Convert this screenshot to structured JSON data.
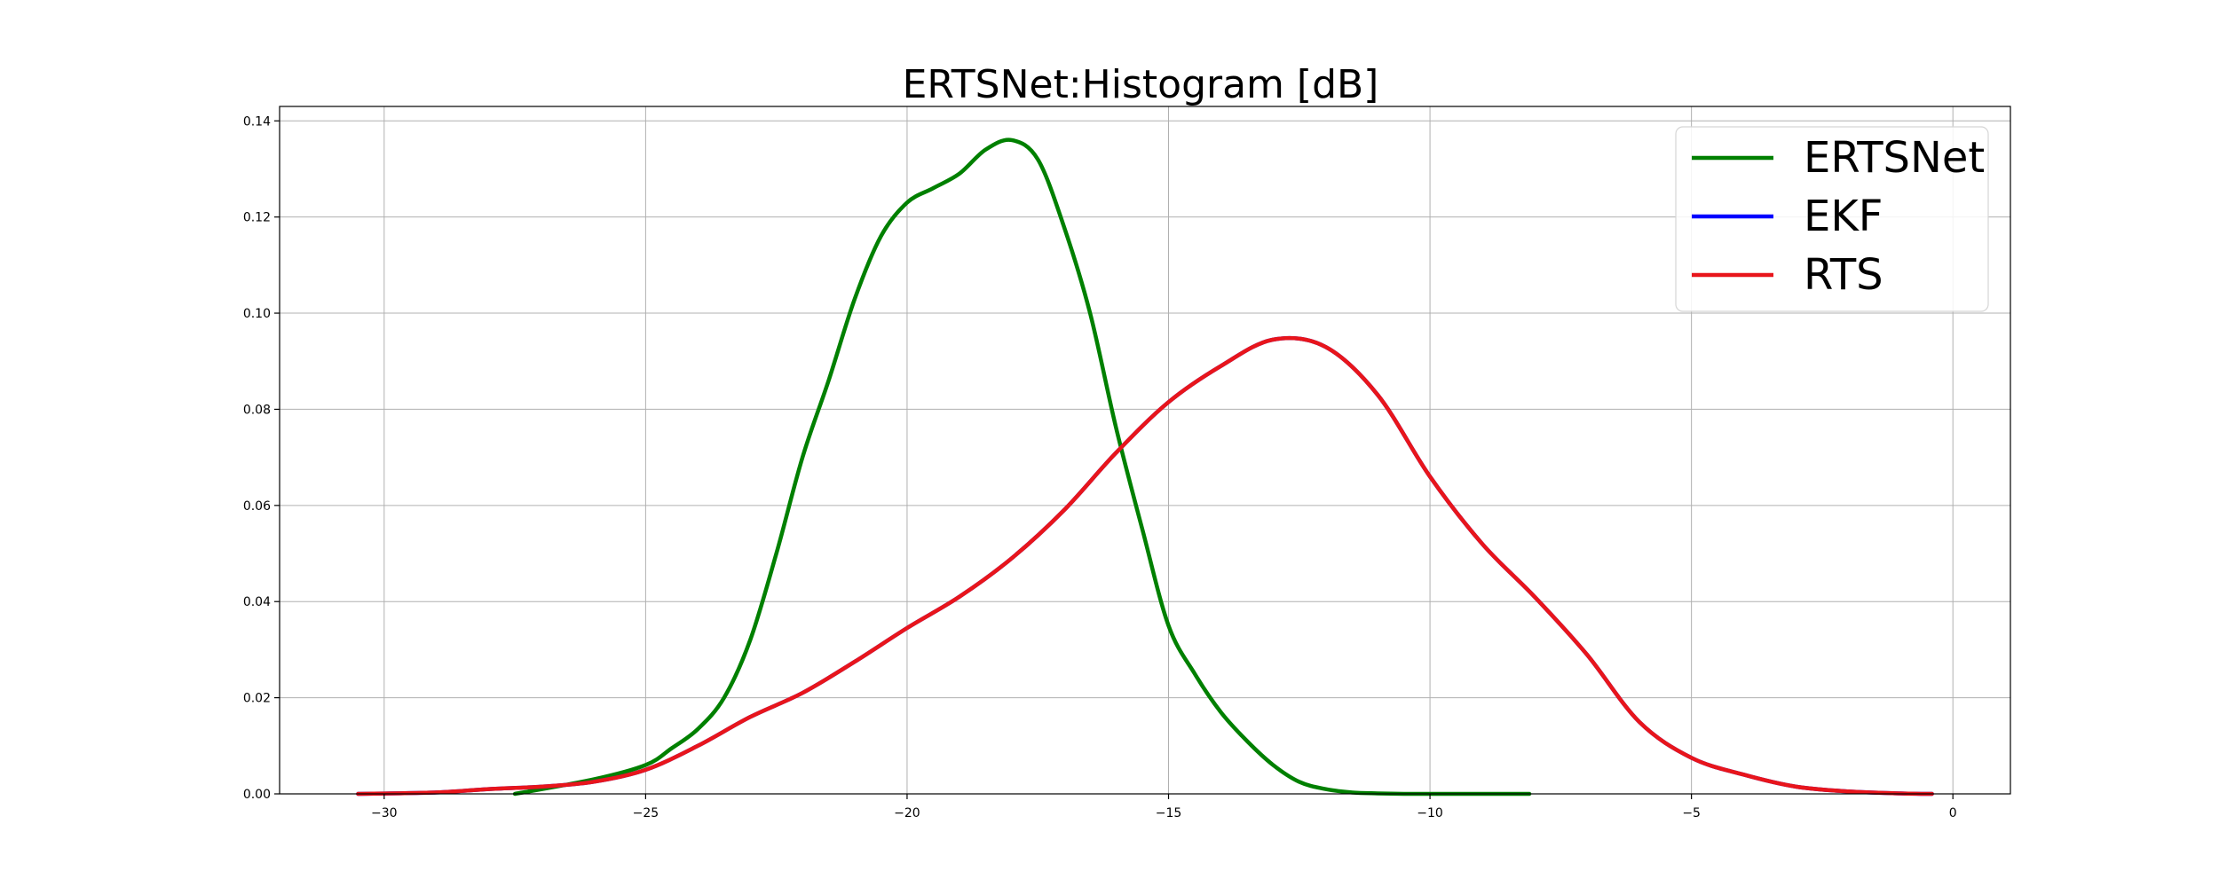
{
  "chart_data": {
    "type": "line",
    "title": "ERTSNet:Histogram [dB]",
    "xlabel": "",
    "ylabel": "",
    "xlim": [
      -32,
      1.1
    ],
    "ylim": [
      0,
      0.143
    ],
    "grid": true,
    "legend_position": "top-right",
    "x_ticks": [
      -30,
      -25,
      -20,
      -15,
      -10,
      -5,
      0
    ],
    "x_tick_labels": [
      "−30",
      "−25",
      "−20",
      "−15",
      "−10",
      "−5",
      "0"
    ],
    "y_ticks": [
      0,
      0.02,
      0.04,
      0.06,
      0.08,
      0.1,
      0.12,
      0.14
    ],
    "y_tick_labels": [
      "0.00",
      "0.02",
      "0.04",
      "0.06",
      "0.08",
      "0.10",
      "0.12",
      "0.14"
    ],
    "series": [
      {
        "name": "ERTSNet",
        "color": "#008000",
        "x": [
          -27.5,
          -26,
          -25,
          -24.5,
          -24,
          -23.5,
          -23,
          -22.5,
          -22,
          -21.5,
          -21,
          -20.5,
          -20,
          -19.5,
          -19,
          -18.5,
          -18,
          -17.5,
          -17,
          -16.5,
          -16,
          -15.5,
          -15,
          -14.5,
          -14,
          -13.5,
          -13,
          -12.5,
          -12,
          -11.5,
          -11,
          -10.5,
          -10,
          -9.5,
          -9,
          -8.5,
          -8.1
        ],
        "y": [
          0.0,
          0.003,
          0.006,
          0.0095,
          0.0135,
          0.02,
          0.032,
          0.05,
          0.07,
          0.086,
          0.103,
          0.116,
          0.123,
          0.126,
          0.129,
          0.134,
          0.136,
          0.132,
          0.118,
          0.1,
          0.076,
          0.055,
          0.035,
          0.025,
          0.017,
          0.011,
          0.006,
          0.0025,
          0.001,
          0.0003,
          0.0001,
          0.0,
          0.0,
          0.0,
          0.0,
          0.0,
          0.0
        ]
      },
      {
        "name": "EKF",
        "color": "#0000ff",
        "x": [
          -30.5,
          -29,
          -28,
          -27,
          -26,
          -25,
          -24,
          -23,
          -22,
          -21,
          -20,
          -19,
          -18,
          -17,
          -16,
          -15,
          -14,
          -13,
          -12,
          -11,
          -10,
          -9,
          -8,
          -7,
          -6,
          -5,
          -4,
          -3,
          -2,
          -1,
          -0.4
        ],
        "y": [
          0.0,
          0.0003,
          0.001,
          0.0015,
          0.0025,
          0.005,
          0.01,
          0.016,
          0.021,
          0.0275,
          0.0345,
          0.041,
          0.049,
          0.059,
          0.071,
          0.0815,
          0.089,
          0.0945,
          0.093,
          0.083,
          0.066,
          0.052,
          0.041,
          0.029,
          0.015,
          0.0075,
          0.004,
          0.0015,
          0.0005,
          0.0001,
          0.0
        ]
      },
      {
        "name": "RTS",
        "color": "#e8151b",
        "x": [
          -30.5,
          -29,
          -28,
          -27,
          -26,
          -25,
          -24,
          -23,
          -22,
          -21,
          -20,
          -19,
          -18,
          -17,
          -16,
          -15,
          -14,
          -13,
          -12,
          -11,
          -10,
          -9,
          -8,
          -7,
          -6,
          -5,
          -4,
          -3,
          -2,
          -1,
          -0.4
        ],
        "y": [
          0.0,
          0.0003,
          0.001,
          0.0015,
          0.0025,
          0.005,
          0.01,
          0.016,
          0.021,
          0.0275,
          0.0345,
          0.041,
          0.049,
          0.059,
          0.071,
          0.0815,
          0.089,
          0.0945,
          0.093,
          0.083,
          0.066,
          0.052,
          0.041,
          0.029,
          0.015,
          0.0075,
          0.004,
          0.0015,
          0.0005,
          0.0001,
          0.0
        ]
      }
    ],
    "legend": [
      "ERTSNet",
      "EKF",
      "RTS"
    ]
  }
}
